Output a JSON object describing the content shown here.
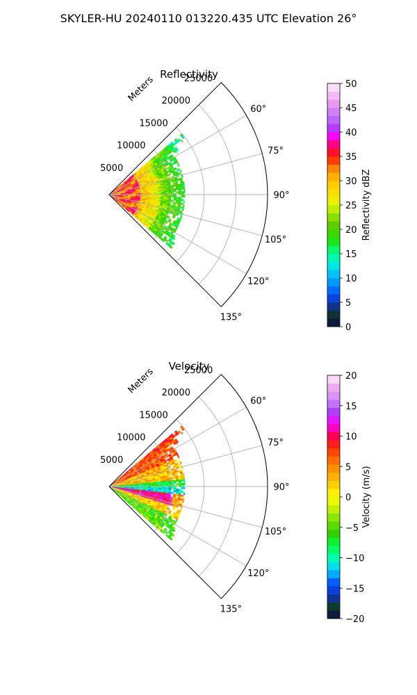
{
  "figure": {
    "title": "SKYLER-HU  20240110  013220.435 UTC Elevation 26°"
  },
  "colors": {
    "grid": "#b0b0b0",
    "frame": "#000000"
  },
  "chart_data": [
    {
      "type": "polar-sector",
      "title": "Reflectivity",
      "range_axis_label": "Meters",
      "range_ticks": [
        5000,
        10000,
        15000,
        20000,
        25000
      ],
      "range_tick_labels": [
        "5000",
        "10000",
        "15000",
        "20000",
        "25000"
      ],
      "rmax": 25000,
      "azimuth_range": [
        45,
        135
      ],
      "azimuth_ticks": [
        60,
        75,
        90,
        105,
        120,
        135
      ],
      "azimuth_tick_labels": [
        "60°",
        "75°",
        "90°",
        "105°",
        "120°",
        "135°"
      ],
      "data_extent": {
        "range_max_meters": [
          [
            52,
            15000
          ],
          [
            60,
            12000
          ],
          [
            75,
            12000
          ],
          [
            90,
            12000
          ],
          [
            105,
            12000
          ],
          [
            120,
            12000
          ],
          [
            128,
            13000
          ]
        ]
      },
      "colorbar": {
        "label": "Reflectivity dBZ",
        "vmin": 0,
        "vmax": 50,
        "ticks": [
          0,
          5,
          10,
          15,
          20,
          25,
          30,
          35,
          40,
          45,
          50
        ],
        "tick_labels": [
          "0",
          "5",
          "10",
          "15",
          "20",
          "25",
          "30",
          "35",
          "40",
          "45",
          "50"
        ],
        "colormap_stops": [
          [
            0,
            "#0c0c44"
          ],
          [
            3,
            "#0f3b2e"
          ],
          [
            5,
            "#1030c8"
          ],
          [
            7,
            "#0060ff"
          ],
          [
            10,
            "#00b0ff"
          ],
          [
            13,
            "#00f0e0"
          ],
          [
            15,
            "#00ff90"
          ],
          [
            18,
            "#20e000"
          ],
          [
            21,
            "#60cc00"
          ],
          [
            24,
            "#b8f000"
          ],
          [
            26,
            "#f0f000"
          ],
          [
            29,
            "#ffd000"
          ],
          [
            32,
            "#ff9c00"
          ],
          [
            35,
            "#ff1a00"
          ],
          [
            37,
            "#ff0060"
          ],
          [
            39,
            "#ff00ff"
          ],
          [
            41,
            "#b040ff"
          ],
          [
            43,
            "#c070ff"
          ],
          [
            46,
            "#ee99ee"
          ],
          [
            50,
            "#fdf0fb"
          ]
        ]
      }
    },
    {
      "type": "polar-sector",
      "title": "Velocity",
      "range_axis_label": "Meters",
      "range_ticks": [
        5000,
        10000,
        15000,
        20000,
        25000
      ],
      "range_tick_labels": [
        "5000",
        "10000",
        "15000",
        "20000",
        "25000"
      ],
      "rmax": 25000,
      "azimuth_range": [
        45,
        135
      ],
      "azimuth_ticks": [
        60,
        75,
        90,
        105,
        120,
        135
      ],
      "azimuth_tick_labels": [
        "60°",
        "75°",
        "90°",
        "105°",
        "120°",
        "135°"
      ],
      "data_extent": {
        "range_max_meters": [
          [
            52,
            15000
          ],
          [
            60,
            12000
          ],
          [
            75,
            12000
          ],
          [
            90,
            12000
          ],
          [
            105,
            12000
          ],
          [
            120,
            12000
          ],
          [
            128,
            13000
          ]
        ]
      },
      "colorbar": {
        "label": "Velocity (m/s)",
        "vmin": -20,
        "vmax": 20,
        "ticks": [
          -20,
          -15,
          -10,
          -5,
          0,
          5,
          10,
          15,
          20
        ],
        "tick_labels": [
          "−20",
          "−15",
          "−10",
          "−5",
          "0",
          "5",
          "10",
          "15",
          "20"
        ],
        "colormap_stops": [
          [
            -20,
            "#0c0c44"
          ],
          [
            -18,
            "#0f3b2e"
          ],
          [
            -16,
            "#1030c8"
          ],
          [
            -14,
            "#0060ff"
          ],
          [
            -12,
            "#00d0ff"
          ],
          [
            -10,
            "#00ffb0"
          ],
          [
            -8,
            "#00ff40"
          ],
          [
            -6,
            "#30d000"
          ],
          [
            -4,
            "#70e000"
          ],
          [
            -2,
            "#c0f000"
          ],
          [
            0,
            "#ffff00"
          ],
          [
            2,
            "#ffd000"
          ],
          [
            4,
            "#ffa000"
          ],
          [
            6,
            "#ff7000"
          ],
          [
            8,
            "#ff3000"
          ],
          [
            10,
            "#ff0050"
          ],
          [
            12,
            "#ff00ff"
          ],
          [
            14,
            "#b040ff"
          ],
          [
            16,
            "#d088ff"
          ],
          [
            18,
            "#eeaaee"
          ],
          [
            20,
            "#fdf0fb"
          ]
        ]
      }
    }
  ]
}
